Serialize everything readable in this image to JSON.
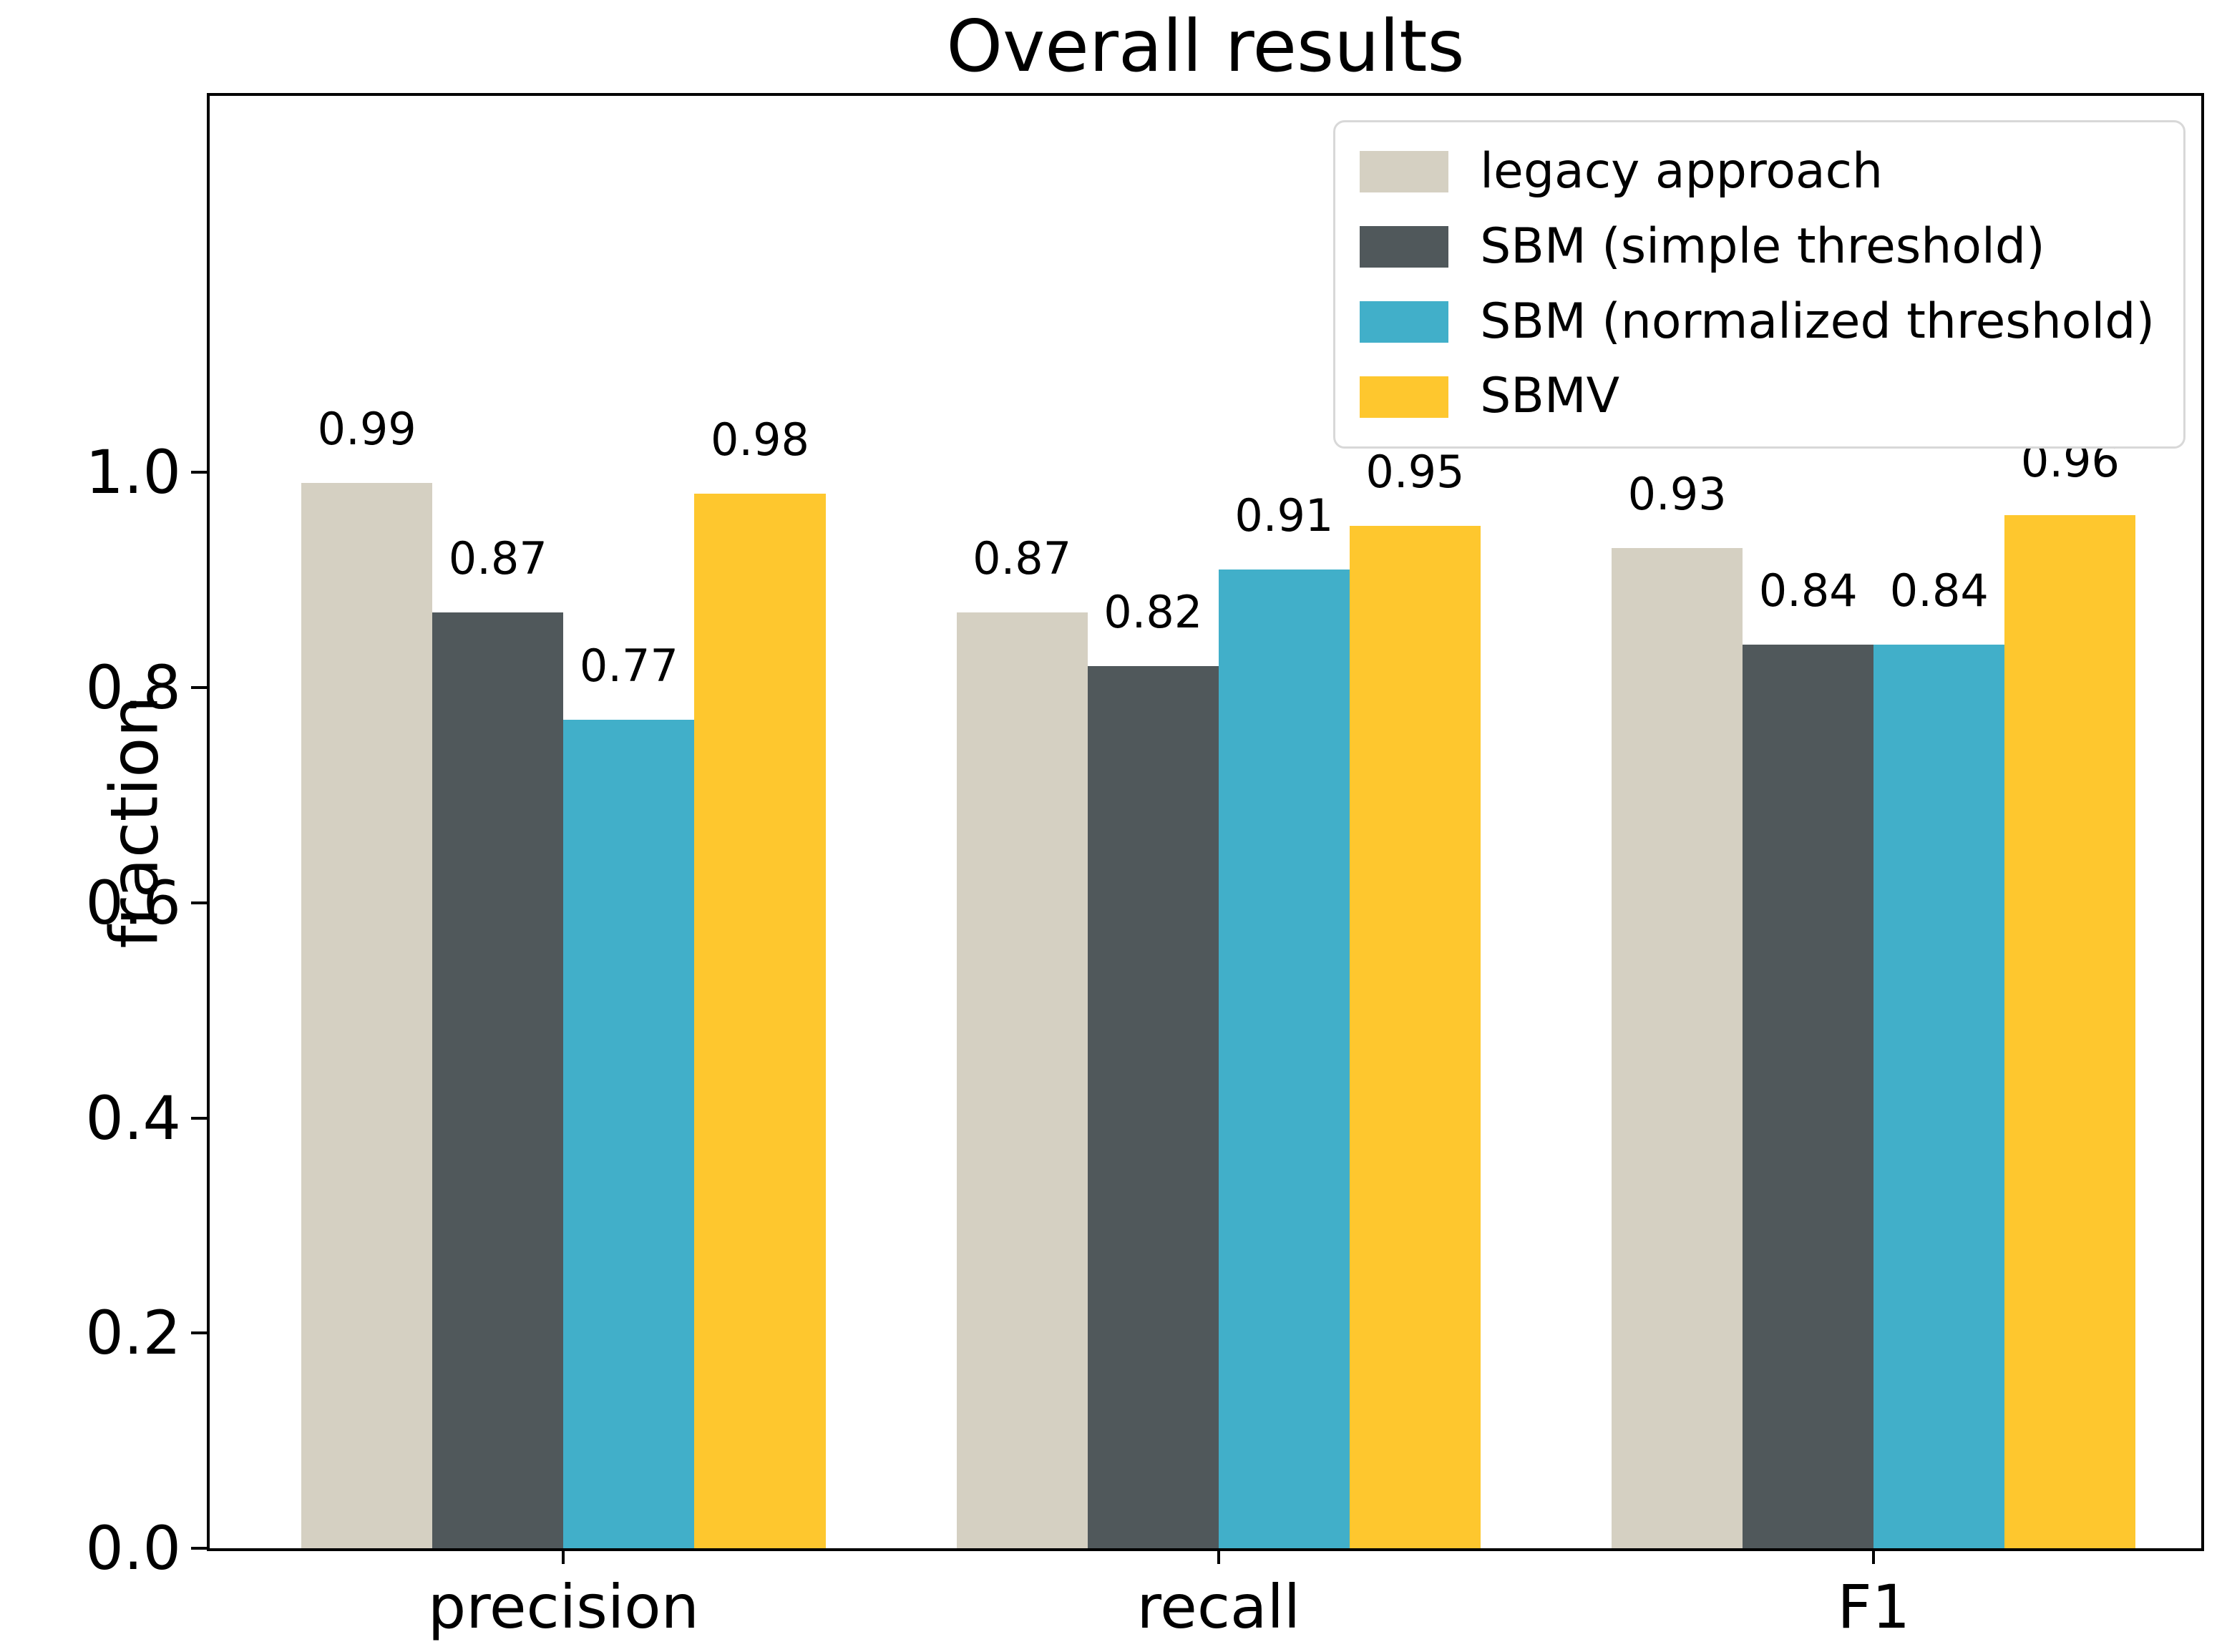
{
  "figure": {
    "title": "Overall results",
    "ylabel": "fraction"
  },
  "chart_data": {
    "type": "bar",
    "title": "Overall results",
    "xlabel": "",
    "ylabel": "fraction",
    "categories": [
      "precision",
      "recall",
      "F1"
    ],
    "series": [
      {
        "name": "legacy approach",
        "color": "#d5d0c2",
        "values": [
          0.99,
          0.87,
          0.93
        ]
      },
      {
        "name": "SBM (simple threshold)",
        "color": "#50585b",
        "values": [
          0.87,
          0.82,
          0.84
        ]
      },
      {
        "name": "SBM (normalized threshold)",
        "color": "#41afc9",
        "values": [
          0.77,
          0.91,
          0.84
        ]
      },
      {
        "name": "SBMV",
        "color": "#fec72e",
        "values": [
          0.98,
          0.95,
          0.96
        ]
      }
    ],
    "bar_value_label_format": "2_decimals",
    "yticks": [
      "0.0",
      "0.2",
      "0.4",
      "0.6",
      "0.8",
      "1.0"
    ],
    "ylim": [
      0,
      1.35
    ],
    "grid": false,
    "legend_position": "upper right",
    "axis_color": "#000000",
    "text_color": "#000000",
    "legend_border_color": "#d8d8d8",
    "background_color": "#ffffff"
  }
}
